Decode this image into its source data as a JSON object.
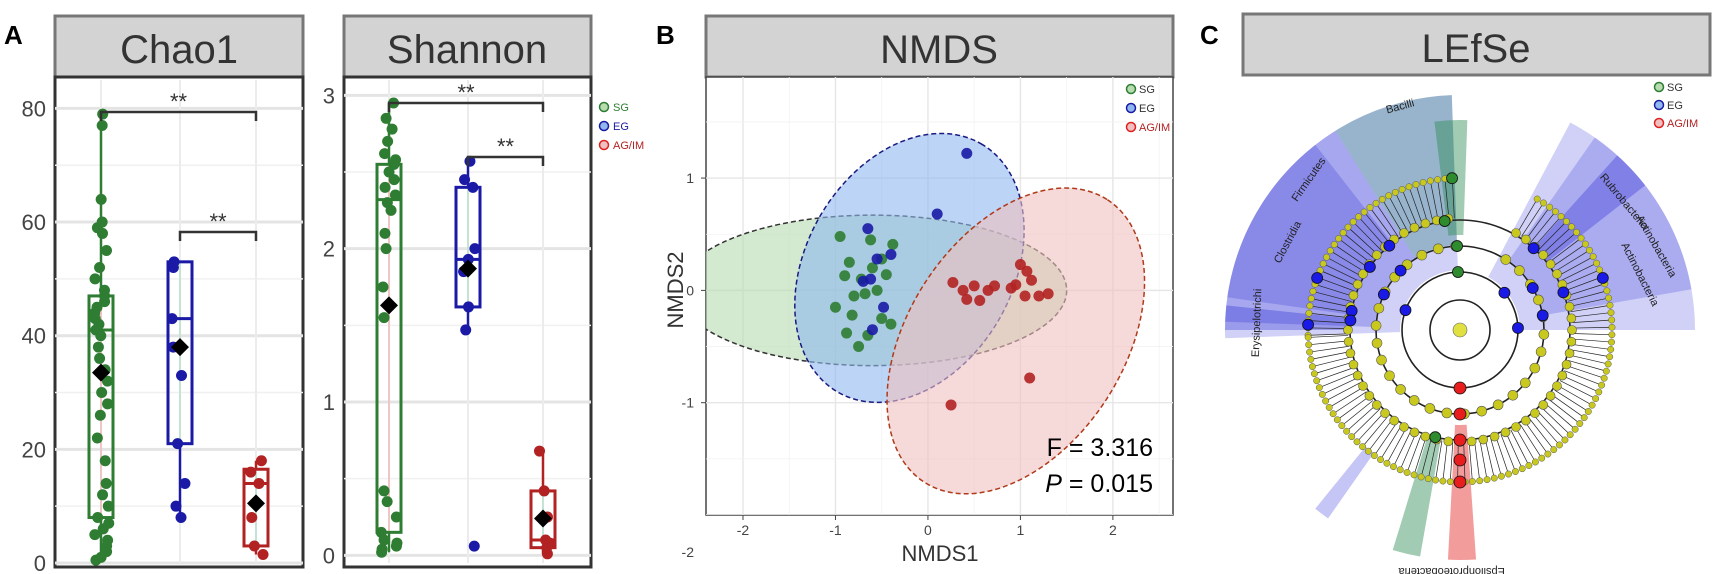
{
  "colors": {
    "SG": "#2e7d32",
    "EG": "#1a1aa6",
    "AGIM": "#b22222",
    "header_bg": "#d3d3d3",
    "header_border": "#777777",
    "grid": "#e6e6e6",
    "lefse_node": "#c8c81e",
    "lefse_shade": "#5a5ae6"
  },
  "legend": {
    "sg": "SG",
    "eg": "EG",
    "agim": "AG/IM"
  },
  "panels": {
    "a": {
      "letter": "A"
    },
    "b": {
      "letter": "B"
    },
    "c": {
      "letter": "C"
    }
  },
  "chart_data": [
    {
      "id": "chao1",
      "type": "box",
      "title": "Chao1",
      "ylim": [
        0,
        85
      ],
      "yticks": [
        0,
        20,
        40,
        60,
        80
      ],
      "sig_labels": [
        "**",
        "**"
      ],
      "groups": [
        {
          "name": "SG",
          "color_key": "SG",
          "box": {
            "min": 0.5,
            "q1": 8,
            "median": 41,
            "q3": 47,
            "max": 79,
            "mean": 33.5
          },
          "points": [
            0.5,
            1,
            2,
            3,
            4,
            5,
            6,
            7,
            8,
            10,
            12,
            14,
            18,
            22,
            26,
            28,
            30,
            32,
            34,
            36,
            38,
            40,
            41,
            42,
            43,
            44,
            45,
            46,
            47,
            48,
            50,
            52,
            55,
            58,
            59,
            60,
            64,
            77,
            79
          ]
        },
        {
          "name": "EG",
          "color_key": "EG",
          "box": {
            "min": 8,
            "q1": 21,
            "median": 43,
            "q3": 53,
            "max": 53,
            "mean": 38
          },
          "points": [
            8,
            10,
            14,
            21,
            33,
            38,
            43,
            52,
            53
          ]
        },
        {
          "name": "AG/IM",
          "color_key": "AGIM",
          "box": {
            "min": 1.5,
            "q1": 3,
            "median": 14,
            "q3": 16.5,
            "max": 18,
            "mean": 10.5
          },
          "points": [
            1.5,
            3,
            8,
            14,
            16,
            18
          ]
        }
      ]
    },
    {
      "id": "shannon",
      "type": "box",
      "title": "Shannon",
      "ylim": [
        -0.05,
        3.1
      ],
      "yticks": [
        0,
        1,
        2,
        3
      ],
      "sig_labels": [
        "**",
        "**"
      ],
      "groups": [
        {
          "name": "SG",
          "color_key": "SG",
          "box": {
            "min": 0.02,
            "q1": 0.15,
            "median": 2.32,
            "q3": 2.55,
            "max": 2.95,
            "mean": 1.63
          },
          "points": [
            0.02,
            0.04,
            0.06,
            0.08,
            0.1,
            0.15,
            0.25,
            0.35,
            0.42,
            1.55,
            1.75,
            2.0,
            2.1,
            2.25,
            2.3,
            2.35,
            2.4,
            2.45,
            2.5,
            2.55,
            2.58,
            2.62,
            2.7,
            2.78,
            2.85,
            2.95
          ]
        },
        {
          "name": "EG",
          "color_key": "EG",
          "box": {
            "min": 1.47,
            "q1": 1.62,
            "median": 1.93,
            "q3": 2.4,
            "max": 2.57,
            "mean": 1.87
          },
          "points": [
            0.06,
            1.47,
            1.62,
            1.85,
            1.93,
            2.0,
            2.4,
            2.45,
            2.57
          ]
        },
        {
          "name": "AG/IM",
          "color_key": "AGIM",
          "box": {
            "min": 0.01,
            "q1": 0.05,
            "median": 0.1,
            "q3": 0.42,
            "max": 0.68,
            "mean": 0.24
          },
          "points": [
            0.01,
            0.05,
            0.08,
            0.1,
            0.25,
            0.42,
            0.68
          ]
        }
      ]
    },
    {
      "id": "nmds",
      "type": "scatter",
      "title": "NMDS",
      "xlabel": "NMDS1",
      "ylabel": "NMDS2",
      "xlim": [
        -2.4,
        2.65
      ],
      "ylim": [
        -2.0,
        1.9
      ],
      "xticks": [
        -2,
        -1,
        0,
        1,
        2
      ],
      "yticks": [
        {
          "v": 1,
          "label": "1"
        },
        {
          "v": 0,
          "label": "0"
        },
        {
          "v": -1,
          "label": "-1"
        }
      ],
      "y_extra_label": "-2",
      "stat_f": "F = 3.316",
      "stat_p_italic": "P",
      "stat_p_rest": " = 0.015",
      "ellipses": [
        {
          "group": "SG",
          "cx": -0.6,
          "cy": 0.0,
          "rx": 2.1,
          "ry": 0.67,
          "angle": 0,
          "fill": "#b6dcb0"
        },
        {
          "group": "EG",
          "cx": -0.2,
          "cy": 0.2,
          "rx": 1.55,
          "ry": 0.92,
          "angle": -60,
          "fill": "#90b8ef"
        },
        {
          "group": "AG/IM",
          "cx": 0.95,
          "cy": -0.45,
          "rx": 1.82,
          "ry": 0.96,
          "angle": -57,
          "fill": "#f0c0c0"
        }
      ],
      "series": [
        {
          "name": "SG",
          "color_key": "SG",
          "points": [
            [
              -0.95,
              0.48
            ],
            [
              -0.62,
              0.45
            ],
            [
              -0.38,
              0.41
            ],
            [
              -0.85,
              0.25
            ],
            [
              -0.5,
              0.28
            ],
            [
              -0.6,
              0.2
            ],
            [
              -0.9,
              0.13
            ],
            [
              -0.72,
              0.1
            ],
            [
              -0.45,
              0.14
            ],
            [
              -0.8,
              -0.05
            ],
            [
              -1.0,
              -0.15
            ],
            [
              -0.68,
              -0.03
            ],
            [
              -0.55,
              0.0
            ],
            [
              -0.82,
              -0.22
            ],
            [
              -0.5,
              -0.25
            ],
            [
              -0.88,
              -0.38
            ],
            [
              -0.65,
              -0.4
            ],
            [
              -0.4,
              -0.3
            ],
            [
              -0.75,
              -0.5
            ]
          ]
        },
        {
          "name": "EG",
          "color_key": "EG",
          "points": [
            [
              0.42,
              1.22
            ],
            [
              0.1,
              0.68
            ],
            [
              -0.65,
              0.55
            ],
            [
              -0.55,
              0.28
            ],
            [
              -0.7,
              0.08
            ],
            [
              -0.4,
              0.32
            ],
            [
              -0.6,
              -0.35
            ],
            [
              -0.48,
              -0.15
            ],
            [
              -0.62,
              0.1
            ]
          ]
        },
        {
          "name": "AG/IM",
          "color_key": "AGIM",
          "points": [
            [
              1.0,
              0.23
            ],
            [
              1.07,
              0.17
            ],
            [
              1.12,
              0.09
            ],
            [
              0.95,
              0.05
            ],
            [
              1.2,
              -0.05
            ],
            [
              1.3,
              -0.03
            ],
            [
              1.05,
              -0.05
            ],
            [
              0.9,
              0.02
            ],
            [
              1.1,
              -0.78
            ],
            [
              0.25,
              -1.02
            ],
            [
              0.27,
              0.07
            ],
            [
              0.5,
              0.04
            ],
            [
              0.65,
              0.0
            ],
            [
              0.72,
              0.04
            ],
            [
              0.38,
              0.0
            ],
            [
              0.56,
              -0.09
            ],
            [
              0.42,
              -0.08
            ]
          ]
        }
      ]
    },
    {
      "id": "lefse",
      "type": "cladogram",
      "title": "LEfSe",
      "labels": [
        "Bacilli",
        "Firmicutes",
        "Clostridia",
        "Erysipelotrichi",
        "Rubrobacteria",
        "Actinobacteria",
        "Actinobacteria",
        "Epsilonproteobacteria"
      ]
    }
  ]
}
